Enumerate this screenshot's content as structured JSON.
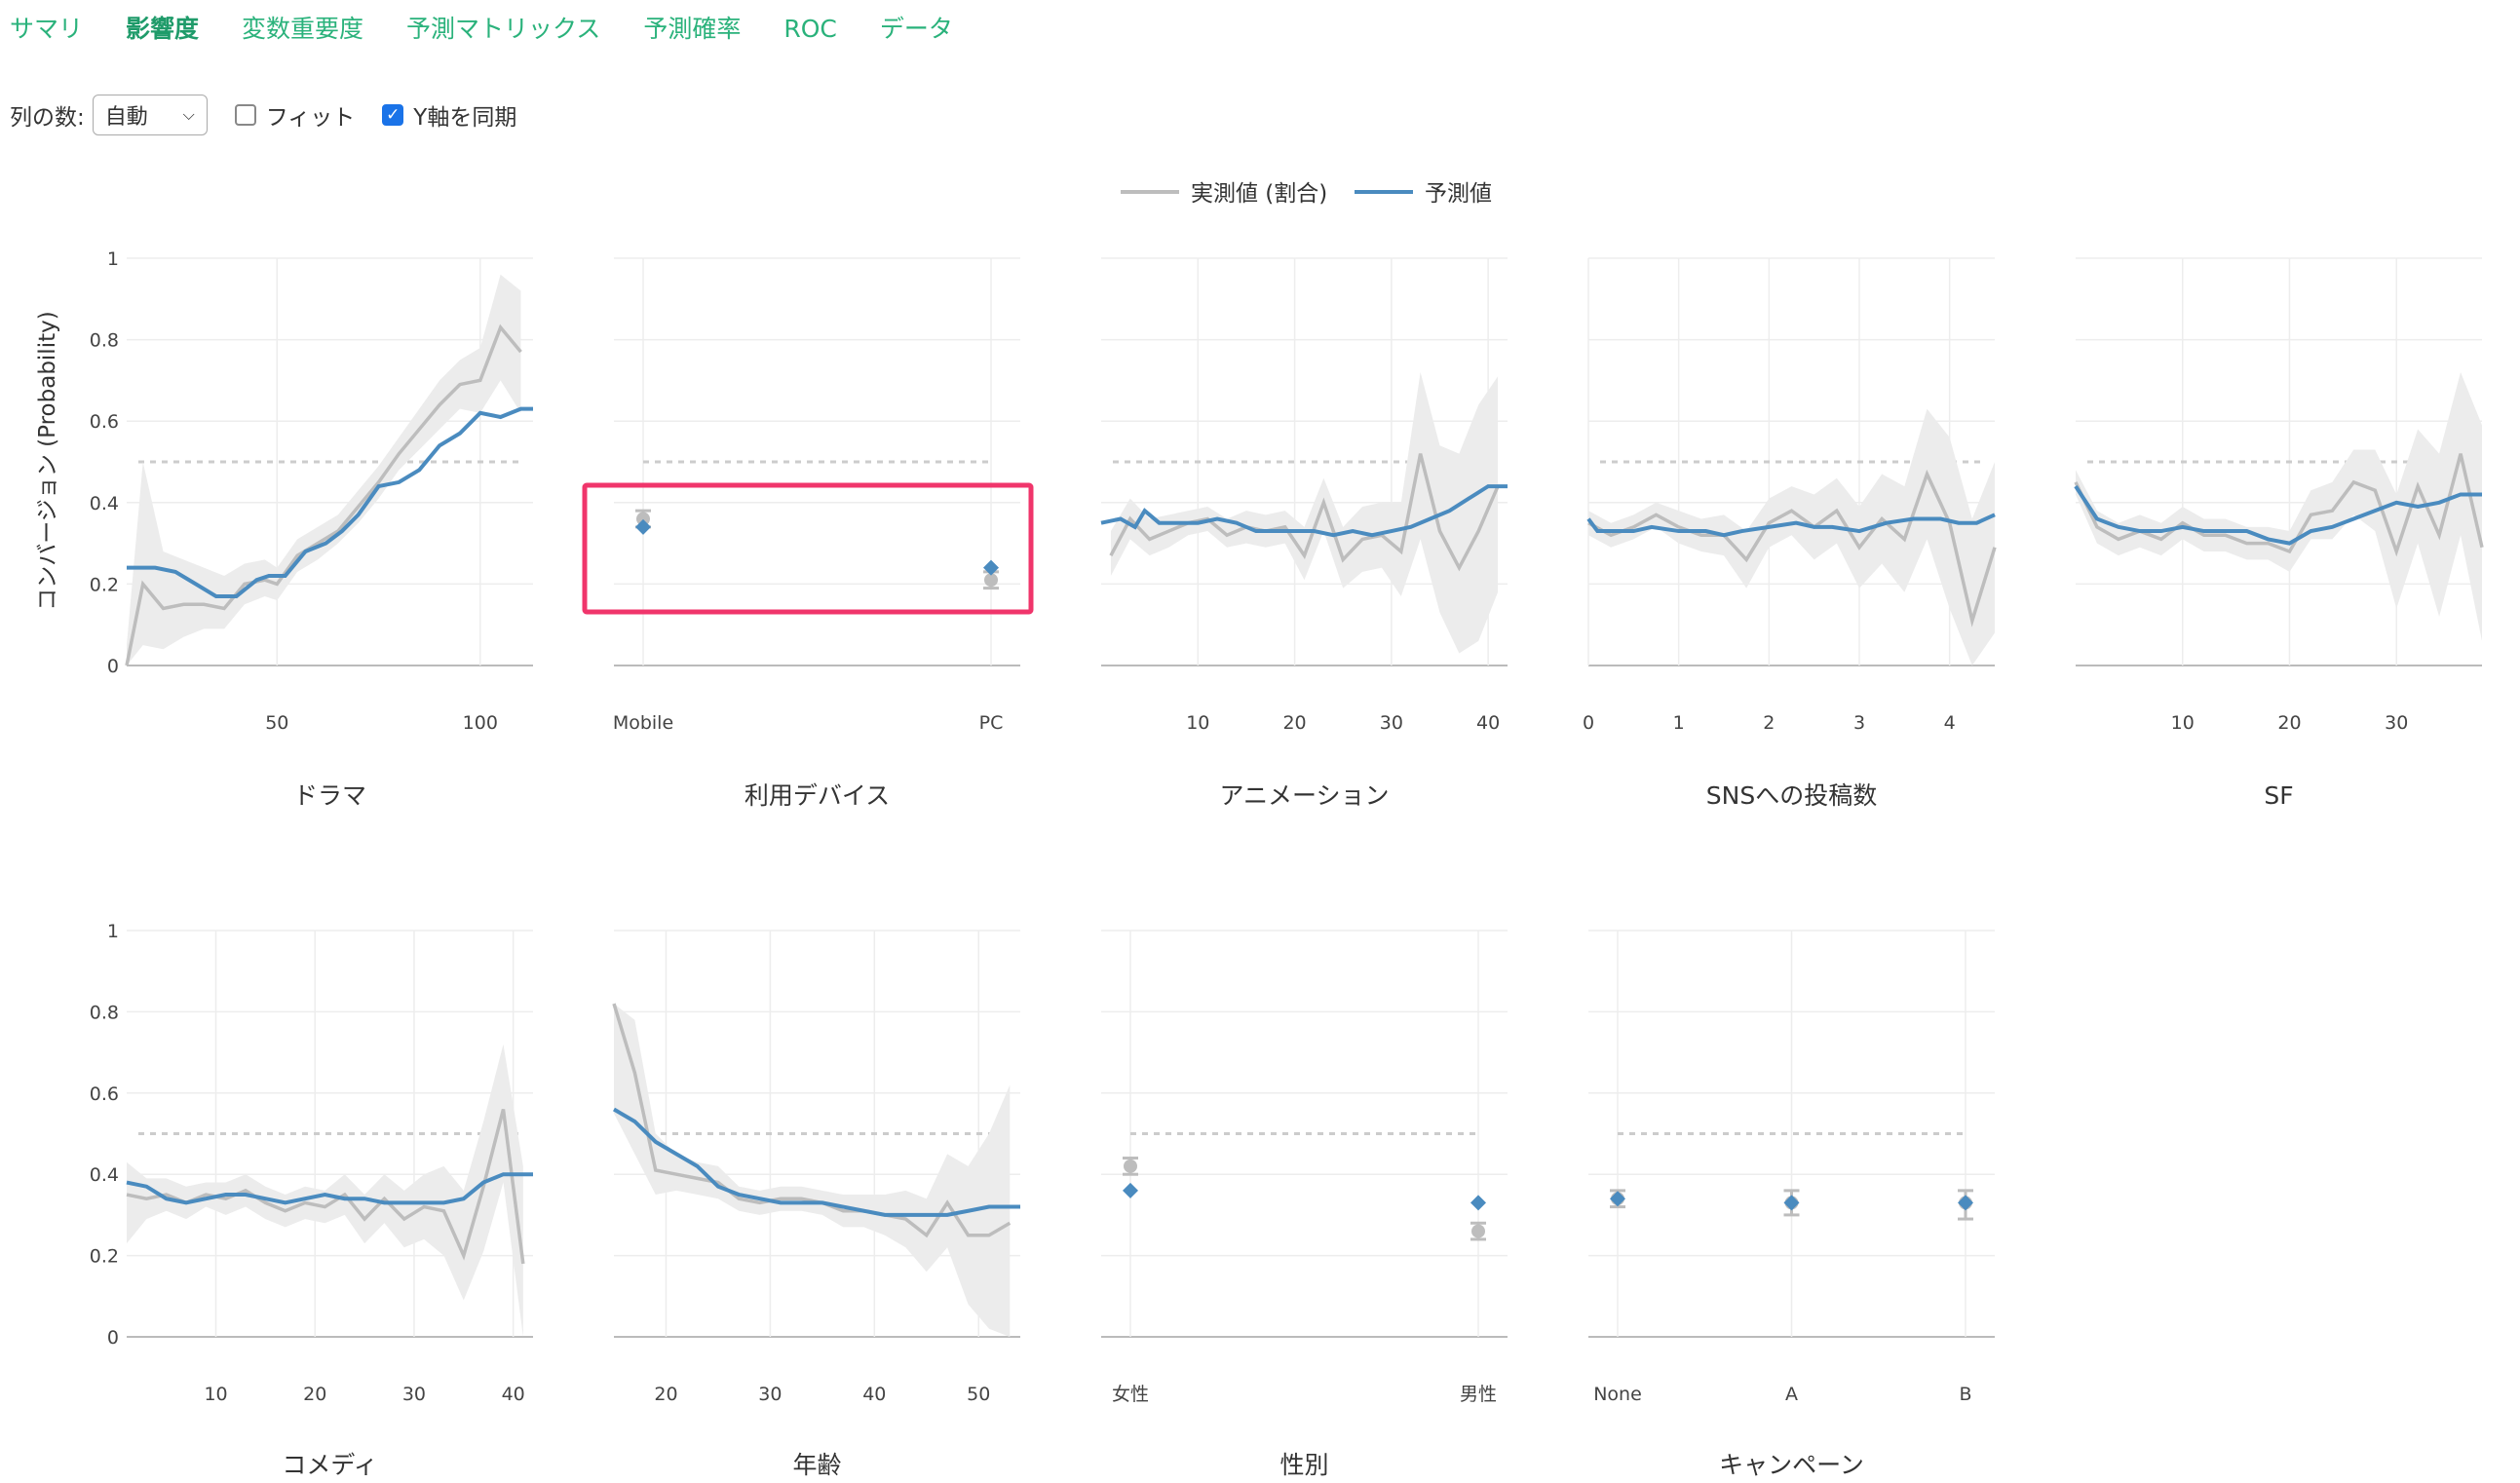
{
  "tabs": [
    {
      "label": "サマリ",
      "active": false
    },
    {
      "label": "影響度",
      "active": true
    },
    {
      "label": "変数重要度",
      "active": false
    },
    {
      "label": "予測マトリックス",
      "active": false
    },
    {
      "label": "予測確率",
      "active": false
    },
    {
      "label": "ROC",
      "active": false
    },
    {
      "label": "データ",
      "active": false
    }
  ],
  "controls": {
    "columns_label": "列の数:",
    "columns_value": "自動",
    "fit_label": "フィット",
    "fit_checked": false,
    "sync_y_label": "Y軸を同期",
    "sync_y_checked": true
  },
  "colors": {
    "actual": "#bdbdbd",
    "predicted": "#4a8bbf",
    "band": "#ececec",
    "baseline": "#cccccc",
    "highlight": "#f0356b",
    "tab": "#2ab27b"
  },
  "chart_data": {
    "type": "line",
    "legend": [
      {
        "name": "実測値 (割合)",
        "color": "#bdbdbd"
      },
      {
        "name": "予測値",
        "color": "#4a8bbf"
      }
    ],
    "legend_position": "top-center",
    "ylabel": "コンバージョン (Probability)",
    "ylim": [
      0,
      1
    ],
    "yticks": [
      "0",
      "0.2",
      "0.4",
      "0.6",
      "0.8",
      "1"
    ],
    "baseline": 0.5,
    "grid": true,
    "highlighted_panel": 1,
    "panels": [
      {
        "title": "ドラマ",
        "kind": "numeric",
        "xlim": [
          13,
          113
        ],
        "xticks": [
          50,
          100
        ],
        "actual_x": [
          13,
          17,
          22,
          27,
          32,
          37,
          42,
          47,
          50,
          55,
          60,
          65,
          70,
          75,
          80,
          85,
          90,
          95,
          100,
          105,
          110
        ],
        "actual_y": [
          0.0,
          0.2,
          0.14,
          0.15,
          0.15,
          0.14,
          0.2,
          0.21,
          0.2,
          0.27,
          0.3,
          0.33,
          0.39,
          0.45,
          0.52,
          0.58,
          0.64,
          0.69,
          0.7,
          0.83,
          0.77
        ],
        "band_upper": [
          0.05,
          0.5,
          0.28,
          0.26,
          0.24,
          0.22,
          0.25,
          0.26,
          0.24,
          0.31,
          0.34,
          0.37,
          0.43,
          0.49,
          0.56,
          0.63,
          0.7,
          0.75,
          0.78,
          0.96,
          0.92
        ],
        "band_lower": [
          0.0,
          0.05,
          0.04,
          0.07,
          0.09,
          0.09,
          0.15,
          0.17,
          0.16,
          0.23,
          0.26,
          0.3,
          0.35,
          0.41,
          0.48,
          0.53,
          0.58,
          0.63,
          0.62,
          0.7,
          0.62
        ],
        "pred_x": [
          13,
          20,
          25,
          30,
          35,
          40,
          45,
          48,
          52,
          57,
          62,
          66,
          70,
          75,
          80,
          85,
          90,
          95,
          100,
          105,
          110,
          113
        ],
        "pred_y": [
          0.24,
          0.24,
          0.23,
          0.2,
          0.17,
          0.17,
          0.21,
          0.22,
          0.22,
          0.28,
          0.3,
          0.33,
          0.37,
          0.44,
          0.45,
          0.48,
          0.54,
          0.57,
          0.62,
          0.61,
          0.63,
          0.63
        ]
      },
      {
        "title": "利用デバイス",
        "kind": "categorical",
        "categories": [
          "Mobile",
          "PC"
        ],
        "actual": [
          0.36,
          0.21
        ],
        "actual_upper": [
          0.38,
          0.23
        ],
        "actual_lower": [
          0.34,
          0.19
        ],
        "pred": [
          0.34,
          0.24
        ]
      },
      {
        "title": "アニメーション",
        "kind": "numeric",
        "xlim": [
          0,
          42
        ],
        "xticks": [
          10,
          20,
          30,
          40
        ],
        "actual_x": [
          1,
          3,
          5,
          7,
          9,
          11,
          13,
          15,
          17,
          19,
          21,
          23,
          25,
          27,
          29,
          31,
          33,
          35,
          37,
          39,
          41
        ],
        "actual_y": [
          0.27,
          0.36,
          0.31,
          0.33,
          0.35,
          0.36,
          0.32,
          0.34,
          0.33,
          0.34,
          0.27,
          0.4,
          0.26,
          0.31,
          0.32,
          0.28,
          0.52,
          0.33,
          0.24,
          0.33,
          0.44
        ],
        "band_upper": [
          0.33,
          0.41,
          0.36,
          0.37,
          0.38,
          0.39,
          0.36,
          0.38,
          0.37,
          0.38,
          0.34,
          0.46,
          0.34,
          0.39,
          0.4,
          0.4,
          0.72,
          0.54,
          0.52,
          0.64,
          0.71
        ],
        "band_lower": [
          0.22,
          0.31,
          0.27,
          0.29,
          0.32,
          0.33,
          0.29,
          0.3,
          0.29,
          0.3,
          0.21,
          0.33,
          0.19,
          0.23,
          0.24,
          0.17,
          0.31,
          0.13,
          0.03,
          0.06,
          0.18
        ],
        "pred_x": [
          0,
          2,
          3.5,
          4.5,
          6,
          8,
          10,
          12,
          14,
          16,
          18,
          20,
          22,
          24,
          26,
          28,
          30,
          32,
          34,
          36,
          38,
          40,
          42
        ],
        "pred_y": [
          0.35,
          0.36,
          0.34,
          0.38,
          0.35,
          0.35,
          0.35,
          0.36,
          0.35,
          0.33,
          0.33,
          0.33,
          0.33,
          0.32,
          0.33,
          0.32,
          0.33,
          0.34,
          0.36,
          0.38,
          0.41,
          0.44,
          0.44
        ]
      },
      {
        "title": "SNSへの投稿数",
        "kind": "numeric",
        "xlim": [
          0,
          4.5
        ],
        "xticks": [
          0,
          1,
          2,
          3,
          4
        ],
        "actual_x": [
          0,
          0.25,
          0.5,
          0.75,
          1.0,
          1.25,
          1.5,
          1.75,
          2.0,
          2.25,
          2.5,
          2.75,
          3.0,
          3.25,
          3.5,
          3.75,
          4.0,
          4.25,
          4.5
        ],
        "actual_y": [
          0.35,
          0.32,
          0.34,
          0.37,
          0.34,
          0.32,
          0.32,
          0.26,
          0.35,
          0.38,
          0.34,
          0.38,
          0.29,
          0.36,
          0.31,
          0.47,
          0.35,
          0.11,
          0.29
        ],
        "band_upper": [
          0.38,
          0.35,
          0.37,
          0.4,
          0.38,
          0.36,
          0.37,
          0.33,
          0.41,
          0.44,
          0.42,
          0.46,
          0.39,
          0.47,
          0.44,
          0.63,
          0.56,
          0.36,
          0.5
        ],
        "band_lower": [
          0.32,
          0.29,
          0.31,
          0.34,
          0.3,
          0.28,
          0.27,
          0.19,
          0.29,
          0.32,
          0.26,
          0.3,
          0.19,
          0.25,
          0.18,
          0.31,
          0.14,
          0.0,
          0.08
        ],
        "pred_x": [
          0,
          0.1,
          0.3,
          0.5,
          0.7,
          1.0,
          1.3,
          1.5,
          1.7,
          2.0,
          2.3,
          2.5,
          2.7,
          3.0,
          3.3,
          3.6,
          3.9,
          4.1,
          4.3,
          4.5
        ],
        "pred_y": [
          0.36,
          0.33,
          0.33,
          0.33,
          0.34,
          0.33,
          0.33,
          0.32,
          0.33,
          0.34,
          0.35,
          0.34,
          0.34,
          0.33,
          0.35,
          0.36,
          0.36,
          0.35,
          0.35,
          0.37
        ]
      },
      {
        "title": "SF",
        "kind": "numeric",
        "xlim": [
          0,
          38
        ],
        "xticks": [
          10,
          20,
          30
        ],
        "actual_x": [
          0,
          2,
          4,
          6,
          8,
          10,
          12,
          14,
          16,
          18,
          20,
          22,
          24,
          26,
          28,
          30,
          32,
          34,
          36,
          38
        ],
        "actual_y": [
          0.45,
          0.34,
          0.31,
          0.33,
          0.31,
          0.35,
          0.32,
          0.32,
          0.3,
          0.3,
          0.28,
          0.37,
          0.38,
          0.45,
          0.43,
          0.28,
          0.44,
          0.32,
          0.52,
          0.29
        ],
        "band_upper": [
          0.48,
          0.38,
          0.35,
          0.37,
          0.35,
          0.39,
          0.36,
          0.36,
          0.34,
          0.34,
          0.33,
          0.43,
          0.45,
          0.53,
          0.53,
          0.42,
          0.58,
          0.52,
          0.72,
          0.59
        ],
        "band_lower": [
          0.42,
          0.3,
          0.27,
          0.29,
          0.27,
          0.31,
          0.28,
          0.28,
          0.26,
          0.26,
          0.23,
          0.31,
          0.31,
          0.37,
          0.33,
          0.14,
          0.3,
          0.12,
          0.32,
          0.06
        ],
        "pred_x": [
          0,
          2,
          4,
          6,
          8,
          10,
          12,
          14,
          16,
          18,
          20,
          22,
          24,
          26,
          28,
          30,
          32,
          34,
          36,
          38
        ],
        "pred_y": [
          0.44,
          0.36,
          0.34,
          0.33,
          0.33,
          0.34,
          0.33,
          0.33,
          0.33,
          0.31,
          0.3,
          0.33,
          0.34,
          0.36,
          0.38,
          0.4,
          0.39,
          0.4,
          0.42,
          0.42
        ]
      },
      {
        "title": "コメディ",
        "kind": "numeric",
        "xlim": [
          1,
          42
        ],
        "xticks": [
          10,
          20,
          30,
          40
        ],
        "actual_x": [
          1,
          3,
          5,
          7,
          9,
          11,
          13,
          15,
          17,
          19,
          21,
          23,
          25,
          27,
          29,
          31,
          33,
          35,
          37,
          39,
          41
        ],
        "actual_y": [
          0.35,
          0.34,
          0.35,
          0.33,
          0.35,
          0.34,
          0.36,
          0.33,
          0.31,
          0.33,
          0.32,
          0.35,
          0.29,
          0.34,
          0.29,
          0.32,
          0.31,
          0.2,
          0.37,
          0.56,
          0.18
        ],
        "band_upper": [
          0.43,
          0.39,
          0.39,
          0.37,
          0.38,
          0.38,
          0.4,
          0.37,
          0.35,
          0.37,
          0.36,
          0.4,
          0.35,
          0.4,
          0.36,
          0.4,
          0.42,
          0.36,
          0.53,
          0.72,
          0.42
        ],
        "band_lower": [
          0.23,
          0.29,
          0.31,
          0.29,
          0.32,
          0.3,
          0.32,
          0.29,
          0.27,
          0.29,
          0.28,
          0.3,
          0.23,
          0.28,
          0.22,
          0.24,
          0.2,
          0.09,
          0.21,
          0.38,
          0.0
        ],
        "pred_x": [
          1,
          3,
          5,
          7,
          9,
          11,
          13,
          15,
          17,
          19,
          21,
          23,
          25,
          27,
          29,
          31,
          33,
          35,
          37,
          39,
          41,
          42
        ],
        "pred_y": [
          0.38,
          0.37,
          0.34,
          0.33,
          0.34,
          0.35,
          0.35,
          0.34,
          0.33,
          0.34,
          0.35,
          0.34,
          0.34,
          0.33,
          0.33,
          0.33,
          0.33,
          0.34,
          0.38,
          0.4,
          0.4,
          0.4
        ]
      },
      {
        "title": "年齢",
        "kind": "numeric",
        "xlim": [
          15,
          54
        ],
        "xticks": [
          20,
          30,
          40,
          50
        ],
        "actual_x": [
          15,
          17,
          19,
          21,
          23,
          25,
          27,
          29,
          31,
          33,
          35,
          37,
          39,
          41,
          43,
          45,
          47,
          49,
          51,
          53
        ],
        "actual_y": [
          0.82,
          0.65,
          0.41,
          0.4,
          0.39,
          0.38,
          0.34,
          0.33,
          0.34,
          0.34,
          0.33,
          0.31,
          0.31,
          0.3,
          0.29,
          0.25,
          0.33,
          0.25,
          0.25,
          0.28
        ],
        "band_upper": [
          0.82,
          0.78,
          0.5,
          0.45,
          0.43,
          0.42,
          0.37,
          0.36,
          0.37,
          0.37,
          0.36,
          0.35,
          0.35,
          0.35,
          0.36,
          0.34,
          0.45,
          0.42,
          0.5,
          0.62
        ],
        "band_lower": [
          0.55,
          0.45,
          0.35,
          0.36,
          0.35,
          0.34,
          0.31,
          0.3,
          0.31,
          0.31,
          0.3,
          0.27,
          0.27,
          0.25,
          0.22,
          0.16,
          0.22,
          0.08,
          0.02,
          0.0
        ],
        "pred_x": [
          15,
          17,
          19,
          21,
          23,
          25,
          27,
          29,
          31,
          33,
          35,
          37,
          39,
          41,
          43,
          45,
          47,
          49,
          51,
          53,
          54
        ],
        "pred_y": [
          0.56,
          0.53,
          0.48,
          0.45,
          0.42,
          0.37,
          0.35,
          0.34,
          0.33,
          0.33,
          0.33,
          0.32,
          0.31,
          0.3,
          0.3,
          0.3,
          0.3,
          0.31,
          0.32,
          0.32,
          0.32
        ]
      },
      {
        "title": "性別",
        "kind": "categorical",
        "categories": [
          "女性",
          "男性"
        ],
        "actual": [
          0.42,
          0.26
        ],
        "actual_upper": [
          0.44,
          0.28
        ],
        "actual_lower": [
          0.4,
          0.24
        ],
        "pred": [
          0.36,
          0.33
        ]
      },
      {
        "title": "キャンペーン",
        "kind": "categorical",
        "categories": [
          "None",
          "A",
          "B"
        ],
        "actual": [
          0.34,
          0.33,
          0.33
        ],
        "actual_upper": [
          0.36,
          0.36,
          0.36
        ],
        "actual_lower": [
          0.32,
          0.3,
          0.29
        ],
        "pred": [
          0.34,
          0.33,
          0.33
        ]
      }
    ]
  }
}
